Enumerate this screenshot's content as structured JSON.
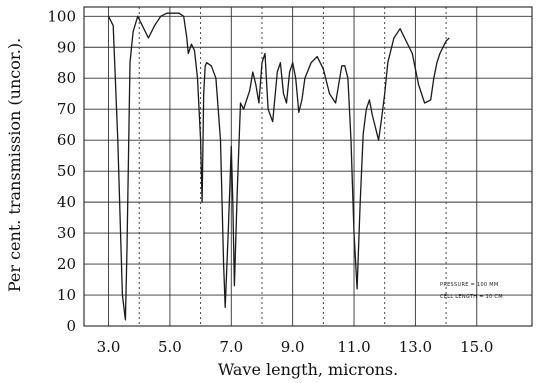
{
  "chart_data": {
    "type": "line",
    "xlabel": "Wave length, microns.",
    "ylabel": "Per cent. transmission (uncor.).",
    "xlim": [
      2.2,
      16.8
    ],
    "ylim": [
      0,
      103
    ],
    "x_ticks": [
      "3.0",
      "5.0",
      "7.0",
      "9.0",
      "11.0",
      "13.0",
      "15.0"
    ],
    "y_ticks": [
      "100",
      "90",
      "80",
      "70",
      "60",
      "50",
      "40",
      "30",
      "20",
      "10",
      "0"
    ],
    "grid": true,
    "annotations": [
      "PRESSURE = 100 MM",
      "CELL LENGTH = 10 CM"
    ],
    "series": [
      {
        "x": [
          3.0,
          3.15,
          3.3,
          3.45,
          3.55,
          3.6,
          3.7,
          3.8,
          3.95,
          4.1,
          4.3,
          4.5,
          4.7,
          4.9,
          5.1,
          5.3,
          5.45,
          5.55,
          5.6,
          5.7,
          5.8,
          5.9,
          6.0,
          6.05,
          6.1,
          6.15,
          6.2,
          6.35,
          6.5,
          6.65,
          6.75,
          6.8,
          6.9,
          7.0,
          7.05,
          7.1,
          7.2,
          7.3,
          7.4,
          7.5,
          7.6,
          7.7,
          7.8,
          7.9,
          8.0,
          8.1,
          8.2,
          8.35,
          8.5,
          8.6,
          8.7,
          8.8,
          8.9,
          9.0,
          9.1,
          9.2,
          9.3,
          9.4,
          9.6,
          9.8,
          10.0,
          10.2,
          10.4,
          10.6,
          10.7,
          10.8,
          10.9,
          11.0,
          11.1,
          11.2,
          11.3,
          11.4,
          11.5,
          11.6,
          11.8,
          11.9,
          12.0,
          12.1,
          12.3,
          12.5,
          12.7,
          12.9,
          13.1,
          13.3,
          13.5,
          13.6,
          13.7,
          13.8,
          13.9,
          14.0,
          14.1
        ],
        "y": [
          100,
          97,
          60,
          10,
          2,
          25,
          85,
          95,
          100,
          97,
          93,
          97,
          100,
          101,
          101,
          101,
          100,
          93,
          88,
          91,
          89,
          80,
          60,
          40,
          75,
          84,
          85,
          84,
          80,
          60,
          20,
          6,
          30,
          58,
          40,
          13,
          45,
          72,
          70,
          73,
          76,
          82,
          78,
          72,
          85,
          88,
          70,
          66,
          82,
          85,
          75,
          72,
          82,
          85,
          80,
          69,
          73,
          80,
          85,
          87,
          83,
          75,
          72,
          84,
          84,
          80,
          60,
          30,
          12,
          40,
          62,
          70,
          73,
          68,
          60,
          67,
          75,
          85,
          93,
          96,
          92,
          88,
          78,
          72,
          73,
          80,
          85,
          88,
          90,
          92,
          93
        ]
      }
    ]
  }
}
